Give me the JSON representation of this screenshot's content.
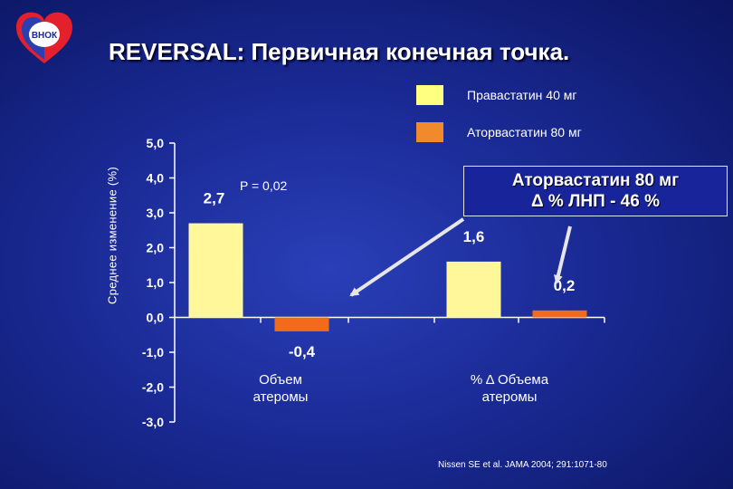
{
  "logo": {
    "text": "ВНОК"
  },
  "title": "REVERSAL: Первичная конечная точка.",
  "legend": [
    {
      "label": "Правастатин 40 мг",
      "color": "#ffff80"
    },
    {
      "label": "Аторвастатин 80 мг",
      "color": "#f08a2a"
    }
  ],
  "callout": {
    "line1": "Аторвастатин 80 мг",
    "line2": "Δ % ЛНП  - 46 %"
  },
  "source": "Nissen SE et al. JAMA 2004; 291:1071-80",
  "colors": {
    "bar_prava": "#fff799",
    "bar_atorva": "#f26b1d",
    "axis": "#ffffff",
    "arrow": "#dcdcdc"
  },
  "chart_data": {
    "type": "bar",
    "ylabel": "Среднее изменение (%)",
    "ylim": [
      -3.0,
      5.0
    ],
    "yticks": [
      5.0,
      4.0,
      3.0,
      2.0,
      1.0,
      0.0,
      -1.0,
      -2.0,
      -3.0
    ],
    "ytick_labels": [
      "5,0",
      "4,0",
      "3,0",
      "2,0",
      "1,0",
      "0,0",
      "-1,0",
      "-2,0",
      "-3,0"
    ],
    "categories": [
      "Объем атеромы",
      "% Δ Объема атеромы"
    ],
    "series": [
      {
        "name": "Правастатин 40 мг",
        "values": [
          2.7,
          1.6
        ],
        "labels": [
          "2,7",
          "1,6"
        ]
      },
      {
        "name": "Аторвастатин 80 мг",
        "values": [
          -0.4,
          0.2
        ],
        "labels": [
          "-0,4",
          "0,2"
        ]
      }
    ],
    "annotations": [
      "P = 0,02"
    ],
    "grid": false
  }
}
